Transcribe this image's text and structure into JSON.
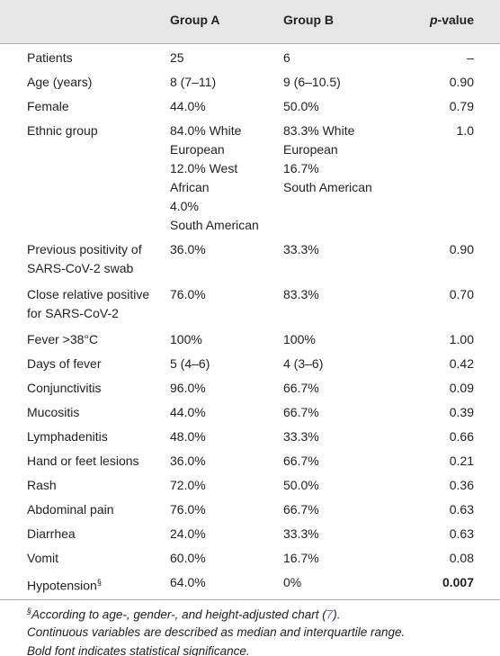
{
  "header": {
    "columns": [
      "Group A",
      "Group B"
    ],
    "p_value": {
      "italic": "p",
      "text": "-value"
    }
  },
  "table": {
    "rows": [
      {
        "label": [
          "Patients"
        ],
        "a": [
          "25"
        ],
        "b": [
          "6"
        ],
        "p": "–"
      },
      {
        "label": [
          "Age (years)"
        ],
        "a": [
          "8 (7–11)"
        ],
        "b": [
          "9 (6–10.5)"
        ],
        "p": "0.90"
      },
      {
        "label": [
          "Female"
        ],
        "a": [
          "44.0%"
        ],
        "b": [
          "50.0%"
        ],
        "p": "0.79"
      },
      {
        "label": [
          "Ethnic group"
        ],
        "a": [
          "84.0% White",
          "European",
          "12.0% West",
          "African",
          "4.0%",
          "South American"
        ],
        "b": [
          "83.3% White",
          "European",
          "16.7%",
          "South American"
        ],
        "p": "1.0"
      },
      {
        "label": [
          "Previous positivity of",
          "SARS-CoV-2 swab"
        ],
        "a": [
          "36.0%"
        ],
        "b": [
          "33.3%"
        ],
        "p": "0.90"
      },
      {
        "label": [
          "Close relative positive",
          "for SARS-CoV-2"
        ],
        "a": [
          "76.0%"
        ],
        "b": [
          "83.3%"
        ],
        "p": "0.70"
      },
      {
        "label": [
          "Fever >38°C"
        ],
        "a": [
          "100%"
        ],
        "b": [
          "100%"
        ],
        "p": "1.00"
      },
      {
        "label": [
          "Days of fever"
        ],
        "a": [
          "5 (4–6)"
        ],
        "b": [
          "4 (3–6)"
        ],
        "p": "0.42"
      },
      {
        "label": [
          "Conjunctivitis"
        ],
        "a": [
          "96.0%"
        ],
        "b": [
          "66.7%"
        ],
        "p": "0.09"
      },
      {
        "label": [
          "Mucositis"
        ],
        "a": [
          "44.0%"
        ],
        "b": [
          "66.7%"
        ],
        "p": "0.39"
      },
      {
        "label": [
          "Lymphadenitis"
        ],
        "a": [
          "48.0%"
        ],
        "b": [
          "33.3%"
        ],
        "p": "0.66"
      },
      {
        "label": [
          "Hand or feet lesions"
        ],
        "a": [
          "36.0%"
        ],
        "b": [
          "66.7%"
        ],
        "p": "0.21"
      },
      {
        "label": [
          "Rash"
        ],
        "a": [
          "72.0%"
        ],
        "b": [
          "50.0%"
        ],
        "p": "0.36"
      },
      {
        "label": [
          "Abdominal pain"
        ],
        "a": [
          "76.0%"
        ],
        "b": [
          "66.7%"
        ],
        "p": "0.63"
      },
      {
        "label": [
          "Diarrhea"
        ],
        "a": [
          "24.0%"
        ],
        "b": [
          "33.3%"
        ],
        "p": "0.63"
      },
      {
        "label": [
          "Vomit"
        ],
        "a": [
          "60.0%"
        ],
        "b": [
          "16.7%"
        ],
        "p": "0.08"
      },
      {
        "label": [
          "Hypotension"
        ],
        "label_mark": "§",
        "a": [
          "64.0%"
        ],
        "b": [
          "0%"
        ],
        "p": "0.007",
        "p_bold": true
      }
    ]
  },
  "footnotes": [
    {
      "mark": "§",
      "text": "According to age-, gender-, and height-adjusted chart (",
      "ref": "7",
      "end": ")."
    },
    {
      "text": "Continuous variables are described as median and interquartile range."
    },
    {
      "text": "Bold font indicates statistical significance."
    }
  ]
}
